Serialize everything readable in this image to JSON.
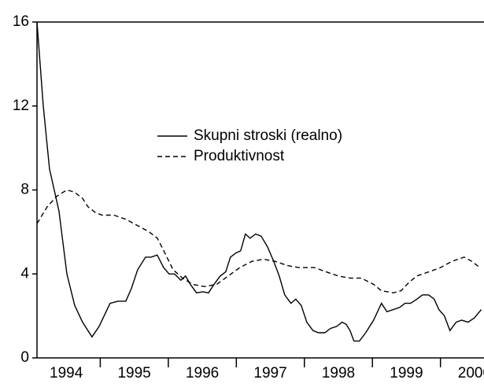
{
  "chart_data": {
    "type": "line",
    "xlim": [
      1994.07,
      2000.64
    ],
    "ylim": [
      0,
      16
    ],
    "yticks": [
      0,
      4,
      8,
      12,
      16
    ],
    "xticks": [
      {
        "value": 1994.5,
        "label": "1994"
      },
      {
        "value": 1995.5,
        "label": "1995"
      },
      {
        "value": 1996.5,
        "label": "1996"
      },
      {
        "value": 1997.5,
        "label": "1997"
      },
      {
        "value": 1998.5,
        "label": "1998"
      },
      {
        "value": 1999.5,
        "label": "1999"
      },
      {
        "value": 2000.5,
        "label": "2000"
      }
    ],
    "legend": "upper center",
    "series": [
      {
        "name": "Skupni stroski (realno)",
        "color": "#000000",
        "dash": "solid",
        "x": [
          1994.07,
          1994.162,
          1994.254,
          1994.393,
          1994.509,
          1994.624,
          1994.74,
          1994.879,
          1994.983,
          1995.145,
          1995.26,
          1995.376,
          1995.457,
          1995.549,
          1995.665,
          1995.746,
          1995.838,
          1995.931,
          1996.012,
          1996.092,
          1996.185,
          1996.254,
          1996.324,
          1996.416,
          1996.509,
          1996.59,
          1996.671,
          1996.763,
          1996.844,
          1996.913,
          1996.994,
          1997.064,
          1997.133,
          1997.202,
          1997.283,
          1997.364,
          1997.457,
          1997.549,
          1997.63,
          1997.711,
          1997.803,
          1997.873,
          1997.954,
          1998.035,
          1998.127,
          1998.208,
          1998.301,
          1998.382,
          1998.474,
          1998.555,
          1998.613,
          1998.671,
          1998.728,
          1998.809,
          1998.902,
          1999.017,
          1999.133,
          1999.214,
          1999.306,
          1999.399,
          1999.48,
          1999.561,
          1999.653,
          1999.734,
          1999.827,
          1999.908,
          1999.977,
          2000.058,
          2000.139,
          2000.231,
          2000.312,
          2000.405,
          2000.497,
          2000.601
        ],
        "values": [
          16,
          12,
          9,
          7,
          4,
          2.5,
          1.7,
          1.0,
          1.5,
          2.6,
          2.7,
          2.7,
          3.3,
          4.2,
          4.8,
          4.8,
          4.9,
          4.3,
          4.0,
          4.0,
          3.7,
          3.9,
          3.5,
          3.1,
          3.15,
          3.1,
          3.5,
          3.9,
          4.1,
          4.8,
          5.0,
          5.1,
          5.9,
          5.7,
          5.9,
          5.8,
          5.3,
          4.6,
          3.9,
          3.0,
          2.6,
          2.8,
          2.5,
          1.7,
          1.3,
          1.2,
          1.2,
          1.4,
          1.5,
          1.7,
          1.6,
          1.3,
          0.8,
          0.8,
          1.2,
          1.8,
          2.6,
          2.2,
          2.3,
          2.4,
          2.6,
          2.6,
          2.8,
          3.0,
          3.0,
          2.8,
          2.3,
          2.0,
          1.3,
          1.7,
          1.8,
          1.7,
          1.9,
          2.3
        ]
      },
      {
        "name": "Produktivnost",
        "color": "#000000",
        "dash": "dashed",
        "x": [
          1994.07,
          1994.22,
          1994.36,
          1994.51,
          1994.62,
          1994.74,
          1994.82,
          1994.94,
          1995.03,
          1995.2,
          1995.38,
          1995.55,
          1995.72,
          1995.84,
          1995.95,
          1996.07,
          1996.21,
          1996.36,
          1996.53,
          1996.71,
          1996.88,
          1997.05,
          1997.23,
          1997.4,
          1997.57,
          1997.75,
          1997.92,
          1998.15,
          1998.32,
          1998.5,
          1998.67,
          1998.84,
          1999.02,
          1999.13,
          1999.31,
          1999.42,
          1999.54,
          1999.65,
          1999.83,
          2000.0,
          2000.17,
          2000.35,
          2000.46,
          2000.58
        ],
        "values": [
          6.4,
          7.2,
          7.7,
          8.0,
          7.9,
          7.6,
          7.2,
          6.9,
          6.8,
          6.8,
          6.6,
          6.3,
          6.0,
          5.7,
          5.0,
          4.2,
          3.8,
          3.5,
          3.4,
          3.5,
          3.9,
          4.3,
          4.6,
          4.7,
          4.6,
          4.4,
          4.3,
          4.3,
          4.1,
          3.9,
          3.8,
          3.8,
          3.5,
          3.2,
          3.1,
          3.2,
          3.6,
          3.9,
          4.1,
          4.3,
          4.6,
          4.8,
          4.6,
          4.3
        ]
      }
    ]
  }
}
